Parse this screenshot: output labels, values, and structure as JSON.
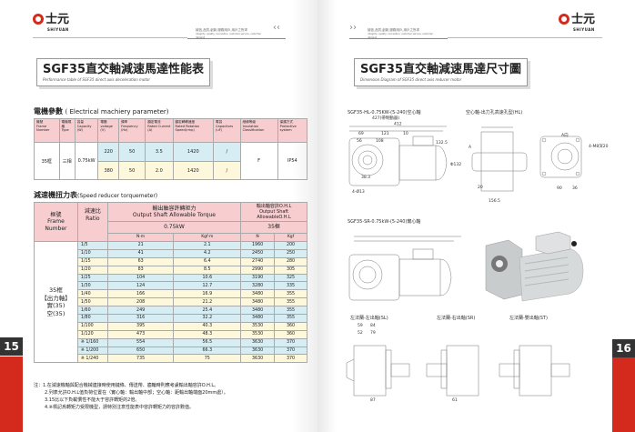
{
  "brand": {
    "name_cn": "士元",
    "name_en": "SHIYUAN",
    "slogan_cn": "誠信,品質,創新,服務用戶,用戶之所求",
    "slogan_en": "integrity, quality, innovation, customer service, customer demand",
    "accent": "#d42a1e"
  },
  "left": {
    "title": "SGF35直交軸減速馬達性能表",
    "subtitle": "Performance table of SGF35 direct axis deceleration motor",
    "electrical": {
      "heading": "電機參數",
      "heading_en": "( Electrical machiery parameter)",
      "headers": [
        [
          "機號",
          "Frame Number"
        ],
        [
          "電機規格",
          "Type"
        ],
        [
          "容量",
          "Capacity (W)"
        ],
        [
          "電壓",
          "voltage (V)"
        ],
        [
          "頻率",
          "Frequency (Hz)"
        ],
        [
          "額定電流",
          "Rated Current (A)"
        ],
        [
          "額定轉轉速度",
          "Rated Rotation Speed(rmp)"
        ],
        [
          "電容",
          "Capacitors (uF)"
        ],
        [
          "絕緣等級",
          "Insulation Classification"
        ],
        [
          "保護方式",
          "Protective system"
        ]
      ],
      "frame": "35框",
      "type": "三相",
      "capacity": "0.75kW",
      "rows": [
        {
          "voltage": "220",
          "freq": "50",
          "current": "3.5",
          "speed": "1420",
          "cap": "/"
        },
        {
          "voltage": "380",
          "freq": "50",
          "current": "2.0",
          "speed": "1420",
          "cap": "/"
        }
      ],
      "insulation": "F",
      "protective": "IP54"
    },
    "torque": {
      "heading": "減速機扭力表",
      "heading_en": "(Speed reducer torquemeter)",
      "h_frame": [
        "框號",
        "Frame",
        "Number"
      ],
      "h_ratio": [
        "減速比",
        "Ratio"
      ],
      "h_torque": [
        "輸出軸容許轉矩力",
        "Output Shaft Allowable Torque"
      ],
      "h_ohl": [
        "輸出軸容許O.H.L",
        "Output Shaft",
        "AllowableO.H.L"
      ],
      "power": "0.75kW",
      "frame_size": "35框",
      "units": [
        "N·m",
        "Kgf·m",
        "N",
        "Kgf"
      ],
      "frame_label": [
        "35框",
        "【出力軸】",
        "實(35)",
        "空(35)"
      ],
      "rows": [
        [
          "1/5",
          "21",
          "2.1",
          "1960",
          "200"
        ],
        [
          "1/10",
          "41",
          "4.2",
          "2450",
          "250"
        ],
        [
          "1/15",
          "63",
          "6.4",
          "2740",
          "280"
        ],
        [
          "1/20",
          "83",
          "8.5",
          "2990",
          "305"
        ],
        [
          "1/25",
          "104",
          "10.6",
          "3190",
          "325"
        ],
        [
          "1/30",
          "124",
          "12.7",
          "3280",
          "335"
        ],
        [
          "1/40",
          "166",
          "16.9",
          "3480",
          "355"
        ],
        [
          "1/50",
          "208",
          "21.2",
          "3480",
          "355"
        ],
        [
          "1/60",
          "249",
          "25.4",
          "3480",
          "355"
        ],
        [
          "1/80",
          "316",
          "32.2",
          "3480",
          "355"
        ],
        [
          "1/100",
          "395",
          "40.3",
          "3530",
          "360"
        ],
        [
          "1/120",
          "473",
          "48.3",
          "3530",
          "360"
        ],
        [
          "※ 1/160",
          "554",
          "56.5",
          "3630",
          "370"
        ],
        [
          "※ 1/200",
          "650",
          "66.3",
          "3630",
          "370"
        ],
        [
          "※ 1/240",
          "735",
          "75",
          "3630",
          "370"
        ]
      ],
      "row_colors": [
        "blue",
        "blue",
        "yel",
        "yel",
        "blue",
        "blue",
        "yel",
        "yel",
        "blue",
        "blue",
        "yel",
        "yel",
        "blue",
        "blue",
        "yel"
      ]
    },
    "notes": [
      "注：1.在減速機軸與配合機械連接時使用鏈條、傳送帶、齒輪時則應考慮輸出軸容許O.H.L。",
      "2.列表允許O.H.L值負荷位置在（實心軸：輸出軸中部；空心軸：距輸出軸端面20mm處）。",
      "3.15比以下負載慣性不能大于容許轉矩的2倍。",
      "4.※標記爲轉矩力受限機型，請特別注意性能表中容許轉矩力的容許數值。"
    ],
    "page_number": "15"
  },
  "right": {
    "title": "SGF35直交軸減速馬達尺寸圖",
    "subtitle": "Dimension Diagram of SGF35 direct axis reducer motor",
    "labels": {
      "hl": "SGF35-HL-0.75KW-(5-240)空心軸",
      "hl_side": "空心軸-出力孔高速孔型(HL)",
      "a_view": "A向",
      "a_mark": "A",
      "bolt": "4-M8深20",
      "sr": "SGF35-SR-0.75kW-(5-240)實心軸",
      "sl_view": "左法蘭-左出軸(SL)",
      "sr_view": "左法蘭-右出軸(SR)",
      "st_view": "左法蘭-雙出軸(ST)"
    },
    "dims": {
      "total": "427(帶制動器)",
      "len": "412",
      "d69": "69",
      "d121": "121",
      "d10": "10",
      "d56": "56",
      "d108": "108",
      "h132": "132.5",
      "phi": "Φ132",
      "d38": "38.3",
      "holes": "4-Ø13",
      "d156": "156.5",
      "d20": "20",
      "d90": "90",
      "d36": "36",
      "d59": "59",
      "d84": "84",
      "d52": "52",
      "d79": "79",
      "d87": "87",
      "d61": "61"
    },
    "page_number": "16"
  }
}
